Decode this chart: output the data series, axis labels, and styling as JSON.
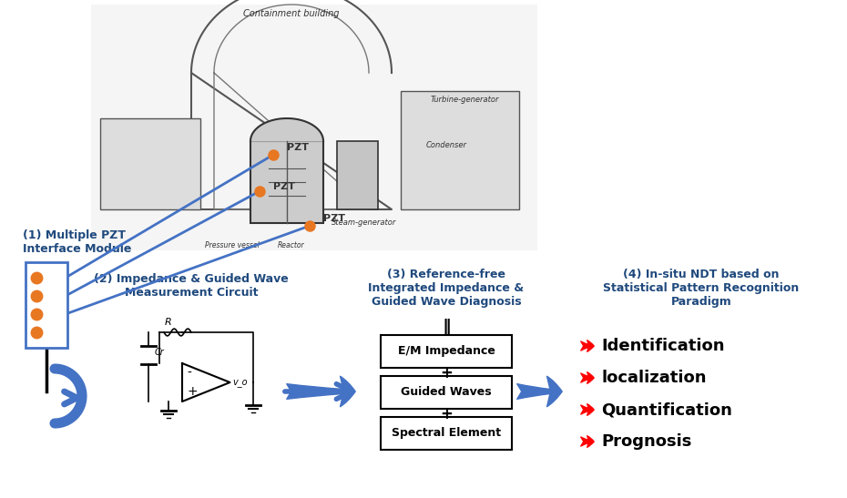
{
  "title": "",
  "bg_color": "#ffffff",
  "section1_label": "(1) Multiple PZT\nInterface Module",
  "section2_label": "(2) Impedance & Guided Wave\nMeasurement Circuit",
  "section3_label": "(3) Reference-free\nIntegrated Impedance &\nGuided Wave Diagnosis",
  "section4_label": "(4) In-situ NDT based on\nStatistical Pattern Recognition\nParadigm",
  "boxes": [
    "E/M Impedance",
    "Guided Waves",
    "Spectral Element"
  ],
  "outputs": [
    "Identification",
    "localization",
    "Quantification",
    "Prognosis"
  ],
  "double_bar": "‖",
  "plus": "+",
  "arrow_color": "#4472C4",
  "red_arrow_color": "#FF0000",
  "box_border": "#000000",
  "output_text_color": "#000000",
  "pzt_dot_color": "#E87722",
  "module_border_color": "#4472C4",
  "label_color": "#1F497D"
}
